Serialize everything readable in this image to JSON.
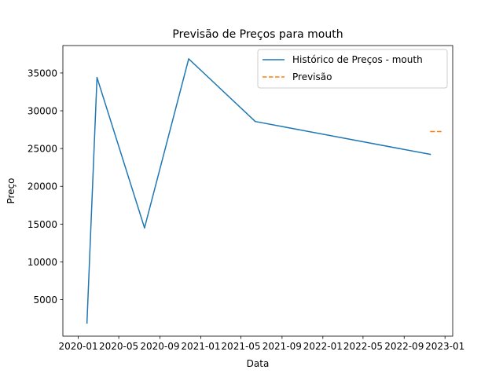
{
  "chart_data": {
    "type": "line",
    "title": "Previsão de Preços para mouth",
    "xlabel": "Data",
    "ylabel": "Preço",
    "x_tick_labels": [
      "2020-01",
      "2020-05",
      "2020-09",
      "2021-01",
      "2021-05",
      "2021-09",
      "2022-01",
      "2022-05",
      "2022-09",
      "2023-01"
    ],
    "x_tick_dates": [
      "2020-01-01",
      "2020-05-01",
      "2020-09-01",
      "2021-01-01",
      "2021-05-01",
      "2021-09-01",
      "2022-01-01",
      "2022-05-01",
      "2022-09-01",
      "2023-01-01"
    ],
    "y_ticks": [
      5000,
      10000,
      15000,
      20000,
      25000,
      30000,
      35000
    ],
    "y_tick_labels": [
      "5000",
      "10000",
      "15000",
      "20000",
      "25000",
      "30000",
      "35000"
    ],
    "xlim": [
      "2019-11-16",
      "2023-01-24"
    ],
    "ylim": [
      170,
      38630
    ],
    "grid": false,
    "legend_position": "top-right",
    "series": [
      {
        "name": "Histórico de Preços - mouth",
        "style": "solid",
        "color": "#1f77b4",
        "x": [
          "2020-01-27",
          "2020-02-26",
          "2020-07-17",
          "2020-11-26",
          "2021-06-13",
          "2022-11-18"
        ],
        "y": [
          1920,
          34400,
          14500,
          36870,
          28580,
          24230
        ]
      },
      {
        "name": "Previsão",
        "style": "dashed",
        "color": "#ff7f0e",
        "x": [
          "2022-11-19",
          "2022-12-20"
        ],
        "y": [
          27250,
          27250
        ]
      }
    ]
  }
}
